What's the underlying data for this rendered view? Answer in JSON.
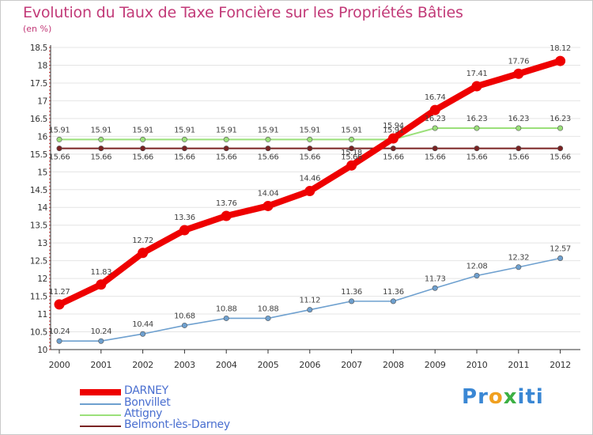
{
  "title": "Evolution du Taux de Taxe Foncière sur les Propriétés Bâties",
  "unit": "(en %)",
  "logo": {
    "chars": [
      "P",
      "r",
      "o",
      "x",
      "i",
      "t",
      "i"
    ],
    "colors": [
      "#3a87d4",
      "#3a87d4",
      "#f0a020",
      "#3cb043",
      "#3a87d4",
      "#3a87d4",
      "#3a87d4"
    ]
  },
  "colors": {
    "DARNEY": "#ee0000",
    "Bonvillet": "#6ea0cf",
    "Attigny": "#9be07a",
    "Belmont": "#7a2323",
    "axis": "#333333",
    "grid": "#e4e4e4",
    "tick": "#cc2222"
  },
  "chart_data": {
    "type": "line",
    "title": "Evolution du Taux de Taxe Foncière sur les Propriétés Bâties",
    "ylabel": "(en %)",
    "xlabel": "",
    "x": [
      "2000",
      "2001",
      "2002",
      "2003",
      "2004",
      "2005",
      "2006",
      "2007",
      "2008",
      "2009",
      "2010",
      "2011",
      "2012"
    ],
    "ylim": [
      10,
      18.5
    ],
    "yticks": [
      "10",
      "10.5",
      "11",
      "11.5",
      "12",
      "12.5",
      "13",
      "13.5",
      "14",
      "14.5",
      "15",
      "15.5",
      "16",
      "16.5",
      "17",
      "17.5",
      "18",
      "18.5"
    ],
    "legend": "bottom-left",
    "series": [
      {
        "name": "DARNEY",
        "values": [
          11.27,
          11.83,
          12.72,
          13.36,
          13.76,
          14.04,
          14.46,
          15.18,
          15.94,
          16.74,
          17.41,
          17.76,
          18.12
        ],
        "labels": [
          "11.27",
          "11.83",
          "12.72",
          "13.36",
          "13.76",
          "14.04",
          "14.46",
          "15.18",
          "15.94",
          "16.74",
          "17.41",
          "17.76",
          "18.12"
        ]
      },
      {
        "name": "Bonvillet",
        "values": [
          10.24,
          10.24,
          10.44,
          10.68,
          10.88,
          10.88,
          11.12,
          11.36,
          11.36,
          11.73,
          12.08,
          12.32,
          12.57
        ],
        "labels": [
          "10.24",
          "10.24",
          "10.44",
          "10.68",
          "10.88",
          "10.88",
          "11.12",
          "11.36",
          "11.36",
          "11.73",
          "12.08",
          "12.32",
          "12.57"
        ]
      },
      {
        "name": "Attigny",
        "values": [
          15.91,
          15.91,
          15.91,
          15.91,
          15.91,
          15.91,
          15.91,
          15.91,
          15.91,
          16.23,
          16.23,
          16.23,
          16.23
        ],
        "labels": [
          "15.91",
          "15.91",
          "15.91",
          "15.91",
          "15.91",
          "15.91",
          "15.91",
          "15.91",
          "15.91",
          "16.23",
          "16.23",
          "16.23",
          "16.23"
        ]
      },
      {
        "name": "Belmont-lès-Darney",
        "values": [
          15.66,
          15.66,
          15.66,
          15.66,
          15.66,
          15.66,
          15.66,
          15.66,
          15.66,
          15.66,
          15.66,
          15.66,
          15.66
        ],
        "labels": [
          "15.66",
          "15.66",
          "15.66",
          "15.66",
          "15.66",
          "15.66",
          "15.66",
          "15.66",
          "15.66",
          "15.66",
          "15.66",
          "15.66",
          "15.66"
        ]
      }
    ]
  }
}
